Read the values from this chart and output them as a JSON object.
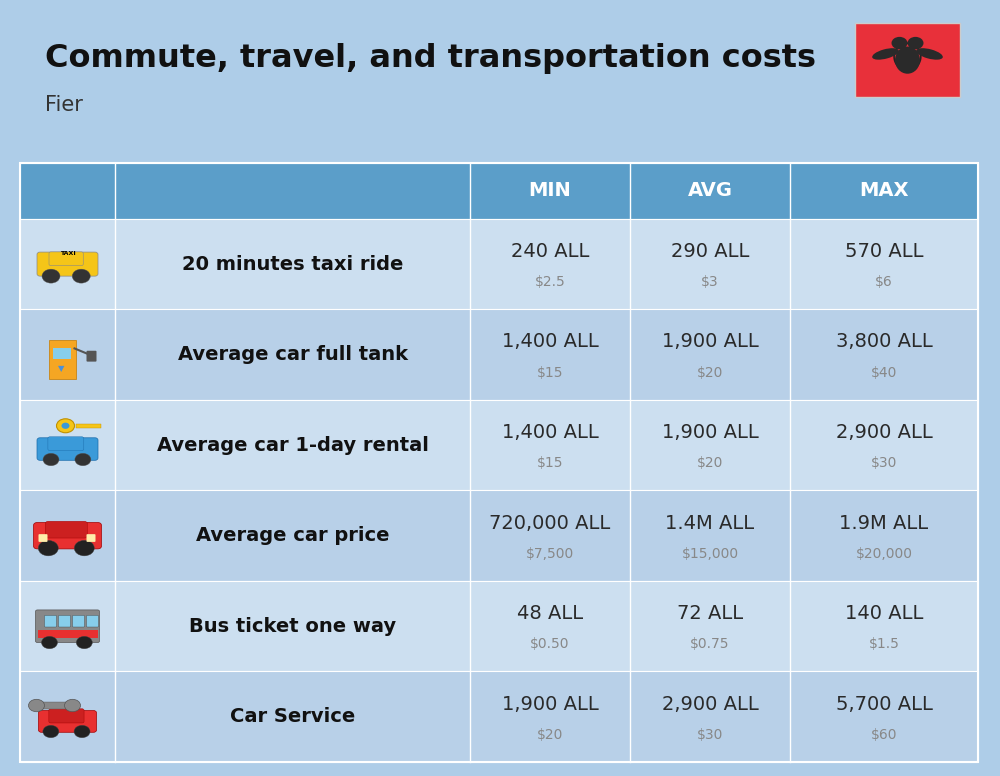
{
  "title": "Commute, travel, and transportation costs",
  "subtitle": "Fier",
  "bg_color": "#aecde8",
  "header_bg_color": "#5b9ec9",
  "row_bg_even": "#ccdff0",
  "row_bg_odd": "#b8d0e8",
  "header_text_color": "#ffffff",
  "main_value_color": "#2a2a2a",
  "sub_value_color": "#888888",
  "label_color": "#111111",
  "divider_color": "#ffffff",
  "columns": [
    "MIN",
    "AVG",
    "MAX"
  ],
  "rows": [
    {
      "label": "20 minutes taxi ride",
      "min_val": "240 ALL",
      "min_sub": "$2.5",
      "avg_val": "290 ALL",
      "avg_sub": "$3",
      "max_val": "570 ALL",
      "max_sub": "$6"
    },
    {
      "label": "Average car full tank",
      "min_val": "1,400 ALL",
      "min_sub": "$15",
      "avg_val": "1,900 ALL",
      "avg_sub": "$20",
      "max_val": "3,800 ALL",
      "max_sub": "$40"
    },
    {
      "label": "Average car 1-day rental",
      "min_val": "1,400 ALL",
      "min_sub": "$15",
      "avg_val": "1,900 ALL",
      "avg_sub": "$20",
      "max_val": "2,900 ALL",
      "max_sub": "$30"
    },
    {
      "label": "Average car price",
      "min_val": "720,000 ALL",
      "min_sub": "$7,500",
      "avg_val": "1.4M ALL",
      "avg_sub": "$15,000",
      "max_val": "1.9M ALL",
      "max_sub": "$20,000"
    },
    {
      "label": "Bus ticket one way",
      "min_val": "48 ALL",
      "min_sub": "$0.50",
      "avg_val": "72 ALL",
      "avg_sub": "$0.75",
      "max_val": "140 ALL",
      "max_sub": "$1.5"
    },
    {
      "label": "Car Service",
      "min_val": "1,900 ALL",
      "min_sub": "$20",
      "avg_val": "2,900 ALL",
      "avg_sub": "$30",
      "max_val": "5,700 ALL",
      "max_sub": "$60"
    }
  ],
  "title_fontsize": 23,
  "subtitle_fontsize": 15,
  "header_fontsize": 14,
  "label_fontsize": 14,
  "value_fontsize": 14,
  "sub_fontsize": 10
}
